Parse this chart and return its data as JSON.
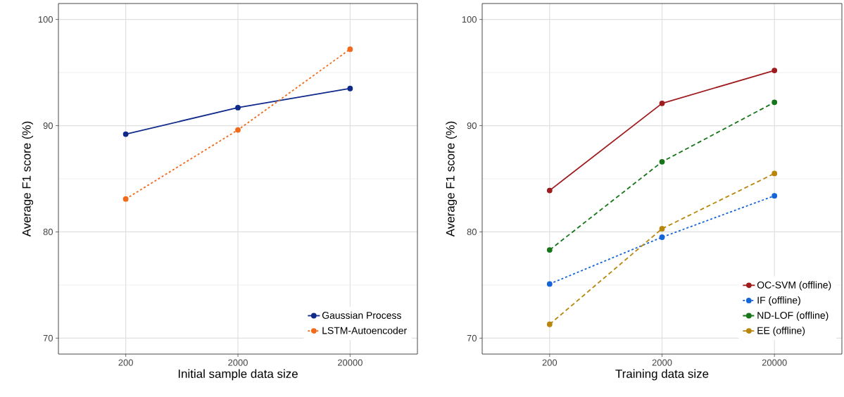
{
  "chart_data": [
    {
      "type": "line",
      "xlabel": "Initial sample data size",
      "ylabel": "Average F1 score (%)",
      "categories": [
        "200",
        "2000",
        "20000"
      ],
      "ylim": [
        68.5,
        101.5
      ],
      "yticks": [
        70,
        80,
        90,
        100
      ],
      "grid": true,
      "legend": "bottom right",
      "marker": "circle",
      "series": [
        {
          "name": "Gaussian Process",
          "color": "#0f2a8a",
          "line_style": "solid",
          "values": [
            89.2,
            91.7,
            93.5
          ]
        },
        {
          "name": "LSTM-Autoencoder",
          "color": "#f26a1b",
          "line_style": "dotted",
          "values": [
            83.1,
            89.6,
            97.2
          ]
        }
      ]
    },
    {
      "type": "line",
      "xlabel": "Training data size",
      "ylabel": "Average F1 score (%)",
      "categories": [
        "200",
        "2000",
        "20000"
      ],
      "ylim": [
        68.5,
        101.5
      ],
      "yticks": [
        70,
        80,
        90,
        100
      ],
      "grid": true,
      "legend": "bottom right",
      "marker": "circle",
      "series": [
        {
          "name": "OC-SVM (offline)",
          "color": "#9e1b1e",
          "line_style": "solid",
          "values": [
            83.9,
            92.1,
            95.2
          ]
        },
        {
          "name": "IF (offline)",
          "color": "#1565d8",
          "line_style": "dotted",
          "values": [
            75.1,
            79.5,
            83.4
          ]
        },
        {
          "name": "ND-LOF (offline)",
          "color": "#17751a",
          "line_style": "dashed",
          "values": [
            78.3,
            86.6,
            92.2
          ]
        },
        {
          "name": "EE (offline)",
          "color": "#b8860b",
          "line_style": "dashed",
          "values": [
            71.3,
            80.3,
            85.5
          ]
        }
      ]
    }
  ]
}
